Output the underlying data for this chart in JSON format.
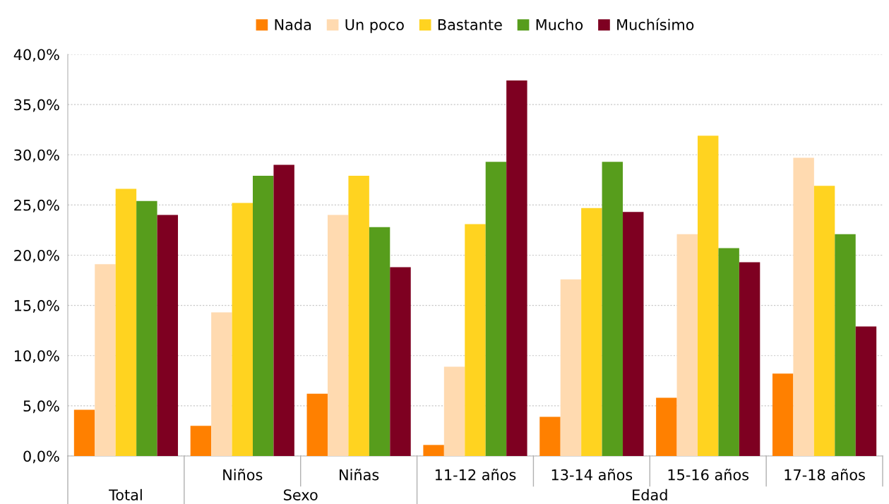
{
  "chart_data": {
    "type": "bar",
    "categories": [
      "Total",
      "Niños",
      "Niñas",
      "11-12 años",
      "13-14 años",
      "15-16 años",
      "17-18 años"
    ],
    "series": [
      {
        "name": "Nada",
        "color": "#ff8000",
        "values": [
          4.6,
          3.0,
          6.2,
          1.1,
          3.9,
          5.8,
          8.2
        ]
      },
      {
        "name": "Un poco",
        "color": "#ffdab0",
        "values": [
          19.1,
          14.3,
          24.0,
          8.9,
          17.6,
          22.1,
          29.7
        ]
      },
      {
        "name": "Bastante",
        "color": "#ffd320",
        "values": [
          26.6,
          25.2,
          27.9,
          23.1,
          24.7,
          31.9,
          26.9
        ]
      },
      {
        "name": "Mucho",
        "color": "#579d1c",
        "values": [
          25.4,
          27.9,
          22.8,
          29.3,
          29.3,
          20.7,
          22.1
        ]
      },
      {
        "name": "Muchísimo",
        "color": "#7e0021",
        "values": [
          24.0,
          29.0,
          18.8,
          37.4,
          24.3,
          19.3,
          12.9
        ]
      }
    ],
    "annotations": [
      "Sexo",
      "Edad"
    ],
    "ylim": [
      0,
      40
    ],
    "yticks": [
      {
        "value": 0,
        "label": "0,0%"
      },
      {
        "value": 5,
        "label": "5,0%"
      },
      {
        "value": 10,
        "label": "10,0%"
      },
      {
        "value": 15,
        "label": "15,0%"
      },
      {
        "value": 20,
        "label": "20,0%"
      },
      {
        "value": 25,
        "label": "25,0%"
      },
      {
        "value": 30,
        "label": "30,0%"
      },
      {
        "value": 35,
        "label": "35,0%"
      },
      {
        "value": 40,
        "label": "40,0%"
      }
    ],
    "grid": "y",
    "legend": "top"
  }
}
